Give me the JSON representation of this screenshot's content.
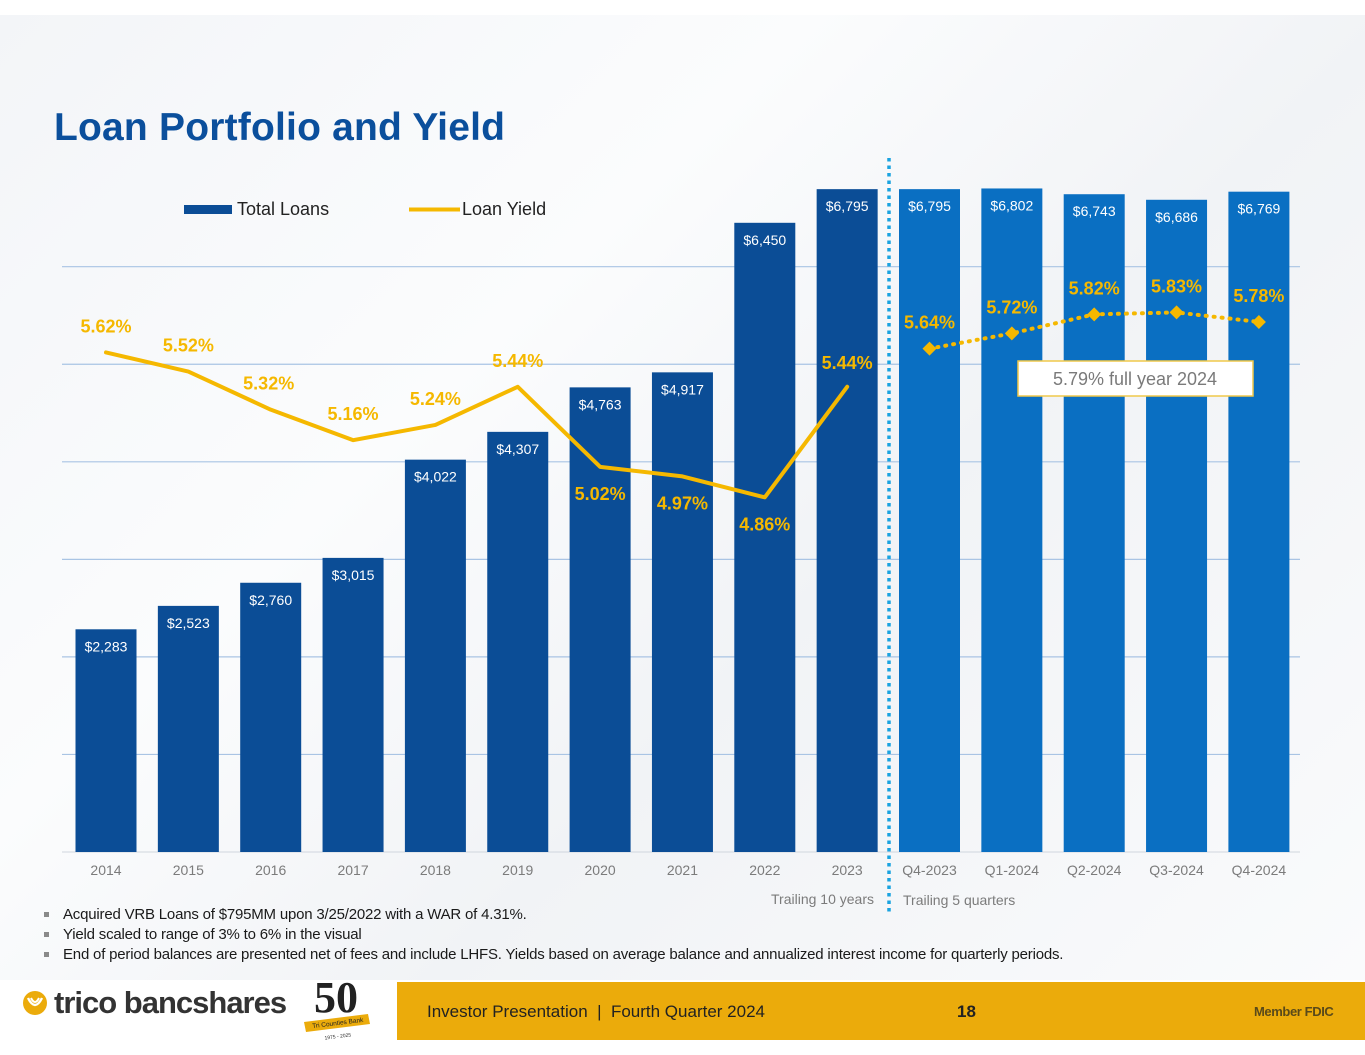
{
  "title": "Loan Portfolio and Yield",
  "colors": {
    "annual_bar": "#0b4d96",
    "quarter_bar": "#0a6fc2",
    "yield": "#f5b800",
    "divider": "#1aa3e0",
    "grid": "#a9c4e4",
    "title": "#0b4f9c",
    "footer": "#ebab0b"
  },
  "chart_data": {
    "type": "bar",
    "title": "Loan Portfolio and Yield",
    "xlabel": "",
    "ylabel": "",
    "ylim": [
      0,
      7000
    ],
    "y2lim": [
      3.0,
      6.0
    ],
    "grid": true,
    "legend": {
      "placement": "top-left",
      "entries": [
        "Total Loans",
        "Loan Yield"
      ]
    },
    "categories": [
      "2014",
      "2015",
      "2016",
      "2017",
      "2018",
      "2019",
      "2020",
      "2021",
      "2022",
      "2023",
      "Q4-2023",
      "Q1-2024",
      "Q2-2024",
      "Q3-2024",
      "Q4-2024"
    ],
    "series": [
      {
        "name": "Total Loans",
        "type": "bar",
        "values": [
          2283,
          2523,
          2760,
          3015,
          4022,
          4307,
          4763,
          4917,
          6450,
          6795,
          6795,
          6802,
          6743,
          6686,
          6769
        ],
        "labels": [
          "$2,283",
          "$2,523",
          "$2,760",
          "$3,015",
          "$4,022",
          "$4,307",
          "$4,763",
          "$4,917",
          "$6,450",
          "$6,795",
          "$6,795",
          "$6,802",
          "$6,743",
          "$6,686",
          "$6,769"
        ]
      },
      {
        "name": "Loan Yield (annual)",
        "type": "line",
        "axis": "secondary",
        "x_range": [
          0,
          9
        ],
        "values": [
          5.62,
          5.52,
          5.32,
          5.16,
          5.24,
          5.44,
          5.02,
          4.97,
          4.86,
          5.44
        ],
        "labels": [
          "5.62%",
          "5.52%",
          "5.32%",
          "5.16%",
          "5.24%",
          "5.44%",
          "5.02%",
          "4.97%",
          "4.86%",
          "5.44%"
        ]
      },
      {
        "name": "Loan Yield (quarterly)",
        "type": "line-dotted-markers",
        "axis": "secondary",
        "x_range": [
          10,
          14
        ],
        "values": [
          5.64,
          5.72,
          5.82,
          5.83,
          5.78
        ],
        "labels": [
          "5.64%",
          "5.72%",
          "5.82%",
          "5.83%",
          "5.78%"
        ]
      }
    ],
    "groups": [
      {
        "label": "Trailing 10 years",
        "categories": [
          "2014",
          "2015",
          "2016",
          "2017",
          "2018",
          "2019",
          "2020",
          "2021",
          "2022",
          "2023"
        ]
      },
      {
        "label": "Trailing 5 quarters",
        "categories": [
          "Q4-2023",
          "Q1-2024",
          "Q2-2024",
          "Q3-2024",
          "Q4-2024"
        ]
      }
    ],
    "annotations": [
      "5.79% full year 2024"
    ]
  },
  "notes": [
    "Acquired VRB Loans of $795MM upon 3/25/2022 with a WAR of 4.31%.",
    "Yield scaled to range of 3% to 6% in the visual",
    "End of period balances are presented net of fees and include LHFS. Yields based on average balance and annualized interest income for quarterly periods."
  ],
  "footer": {
    "company": "trico bancshares",
    "anniversary_number": "50",
    "anniversary_banner": "Tri Counties Bank",
    "anniversary_years": "1975 - 2025",
    "presentation": "Investor Presentation  |  Fourth Quarter 2024",
    "page": "18",
    "member": "Member FDIC"
  }
}
